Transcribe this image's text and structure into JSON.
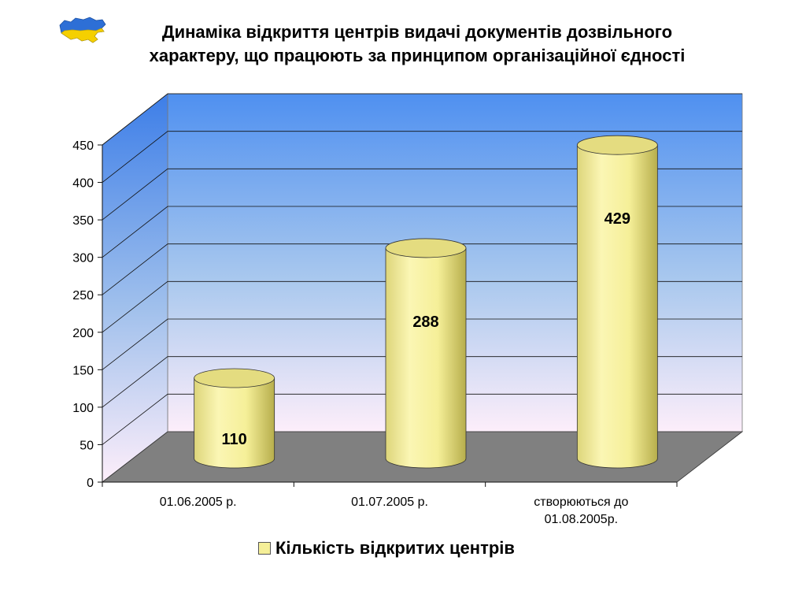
{
  "header": {
    "title_line1": "Динаміка відкриття центрів видачі документів дозвільного",
    "title_line2": "характеру, що працюють за принципом організаційної єдності"
  },
  "chart_data": {
    "type": "bar",
    "bar_shape": "cylinder",
    "three_d": true,
    "categories": [
      "01.06.2005 р.",
      "01.07.2005 р.",
      "створюються до 01.08.2005р."
    ],
    "series": [
      {
        "name": "Кількість відкритих  центрів",
        "values": [
          110,
          288,
          429
        ]
      }
    ],
    "data_labels": [
      "110",
      "288",
      "429"
    ],
    "ylim": [
      0,
      450
    ],
    "y_ticks": [
      0,
      50,
      100,
      150,
      200,
      250,
      300,
      350,
      400,
      450
    ],
    "grid": true,
    "legend_position": "bottom",
    "colors": {
      "bar": "#f5ef98",
      "floor": "#808080",
      "wall_top": "#4f90f0",
      "wall_bottom": "#fdeefa"
    }
  },
  "legend": {
    "label": "Кількість відкритих  центрів"
  },
  "icons": {
    "logo": "ukraine-map-icon"
  }
}
